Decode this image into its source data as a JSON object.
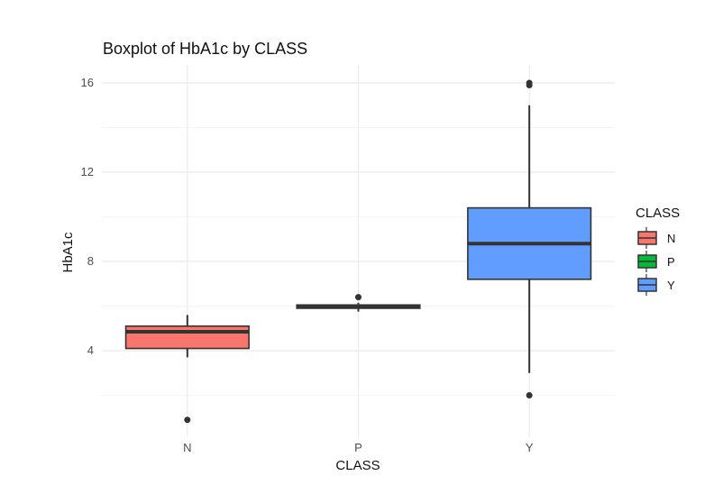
{
  "chart_data": {
    "type": "boxplot",
    "title": "Boxplot of HbA1c by CLASS",
    "xlabel": "CLASS",
    "ylabel": "HbA1c",
    "ylim": [
      0.3,
      16.6
    ],
    "yticks": [
      4,
      8,
      12,
      16
    ],
    "grid": true,
    "legend": {
      "title": "CLASS",
      "position": "right"
    },
    "categories": [
      "N",
      "P",
      "Y"
    ],
    "series": [
      {
        "name": "N",
        "color": "#F8766D",
        "whisker_low": 3.7,
        "q1": 4.1,
        "median": 4.85,
        "q3": 5.1,
        "whisker_high": 5.6,
        "outliers": [
          0.9
        ]
      },
      {
        "name": "P",
        "color": "#00BA38",
        "whisker_low": 5.75,
        "q1": 5.9,
        "median": 6.0,
        "q3": 6.05,
        "whisker_high": 6.15,
        "outliers": [
          6.4
        ]
      },
      {
        "name": "Y",
        "color": "#619CFF",
        "whisker_low": 3.0,
        "q1": 7.2,
        "median": 8.8,
        "q3": 10.4,
        "whisker_high": 15.0,
        "outliers": [
          2.0,
          15.9,
          16.0
        ]
      }
    ]
  }
}
